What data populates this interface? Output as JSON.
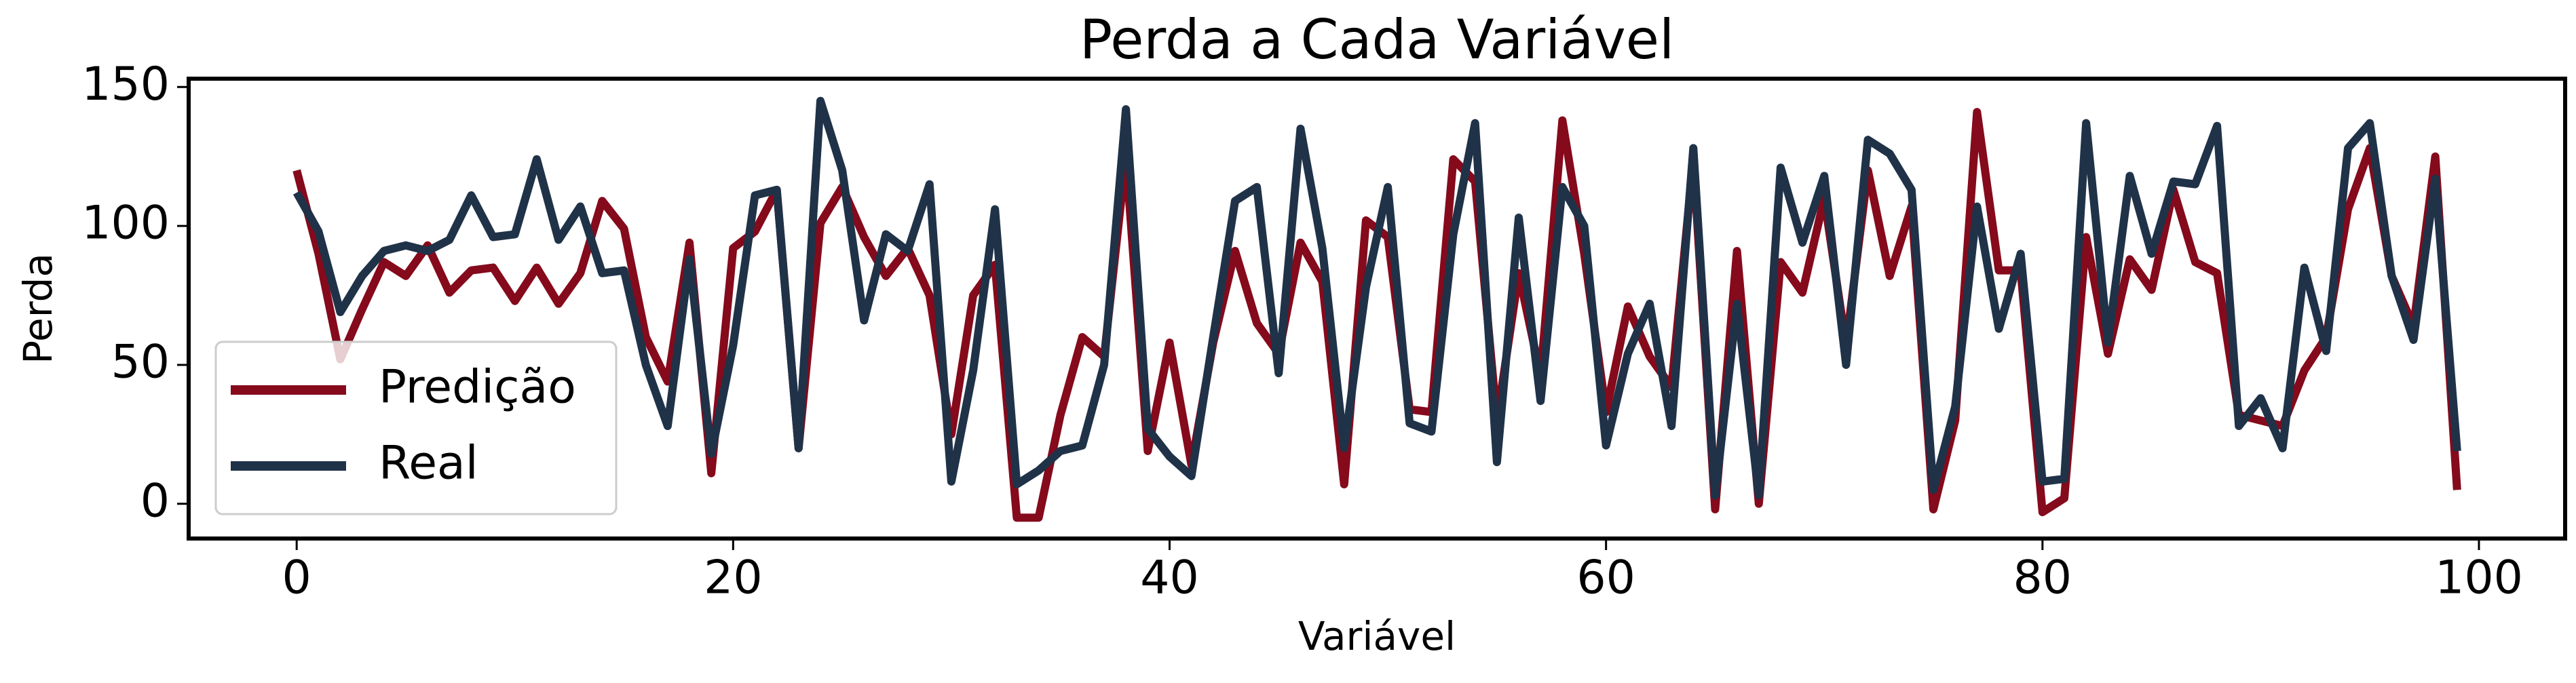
{
  "chart_data": {
    "type": "line",
    "title": "Perda a Cada Variável",
    "xlabel": "Variável",
    "ylabel": "Perda",
    "x": [
      0,
      1,
      2,
      3,
      4,
      5,
      6,
      7,
      8,
      9,
      10,
      11,
      12,
      13,
      14,
      15,
      16,
      17,
      18,
      19,
      20,
      21,
      22,
      23,
      24,
      25,
      26,
      27,
      28,
      29,
      30,
      31,
      32,
      33,
      34,
      35,
      36,
      37,
      38,
      39,
      40,
      41,
      42,
      43,
      44,
      45,
      46,
      47,
      48,
      49,
      50,
      51,
      52,
      53,
      54,
      55,
      56,
      57,
      58,
      59,
      60,
      61,
      62,
      63,
      64,
      65,
      66,
      67,
      68,
      69,
      70,
      71,
      72,
      73,
      74,
      75,
      76,
      77,
      78,
      79,
      80,
      81,
      82,
      83,
      84,
      85,
      86,
      87,
      88,
      89,
      90,
      91,
      92,
      93,
      94,
      95,
      96,
      97,
      98,
      99
    ],
    "series": [
      {
        "name": "Predição",
        "color": "#850a1c",
        "values": [
          120,
          90,
          52,
          70,
          87,
          82,
          93,
          76,
          84,
          85,
          73,
          85,
          72,
          83,
          109,
          99,
          60,
          44,
          94,
          11,
          92,
          98,
          113,
          20,
          101,
          114,
          96,
          82,
          92,
          75,
          25,
          75,
          86,
          -5,
          -5,
          32,
          60,
          53,
          125,
          19,
          58,
          14,
          58,
          91,
          65,
          54,
          94,
          80,
          7,
          102,
          96,
          34,
          33,
          124,
          116,
          30,
          83,
          46,
          138,
          90,
          33,
          71,
          53,
          42,
          124,
          -2,
          91,
          0,
          87,
          76,
          110,
          57,
          120,
          82,
          107,
          -2,
          30,
          141,
          84,
          84,
          -3,
          2,
          96,
          54,
          88,
          77,
          113,
          87,
          83,
          32,
          30,
          28,
          48,
          60,
          106,
          128,
          82,
          64,
          125,
          5
        ]
      },
      {
        "name": "Real",
        "color": "#1f3248",
        "values": [
          112,
          98,
          69,
          82,
          91,
          93,
          91,
          95,
          111,
          96,
          97,
          124,
          95,
          107,
          83,
          84,
          50,
          28,
          88,
          18,
          57,
          111,
          113,
          20,
          145,
          120,
          66,
          97,
          91,
          115,
          8,
          48,
          106,
          7,
          12,
          19,
          21,
          50,
          142,
          27,
          17,
          10,
          60,
          109,
          114,
          47,
          135,
          92,
          20,
          78,
          114,
          29,
          26,
          97,
          137,
          15,
          103,
          37,
          114,
          100,
          21,
          54,
          72,
          28,
          128,
          3,
          72,
          3,
          121,
          94,
          118,
          50,
          131,
          126,
          113,
          5,
          35,
          107,
          63,
          90,
          8,
          9,
          137,
          58,
          118,
          90,
          116,
          115,
          136,
          28,
          38,
          20,
          85,
          55,
          128,
          137,
          82,
          59,
          117,
          19
        ]
      }
    ],
    "xlim": [
      -4.95,
      103.95
    ],
    "xticks": [
      0,
      20,
      40,
      60,
      80,
      100
    ],
    "ylim": [
      -12.5,
      153
    ],
    "yticks": [
      0,
      50,
      100,
      150
    ],
    "grid": false,
    "legend": "lower left"
  }
}
